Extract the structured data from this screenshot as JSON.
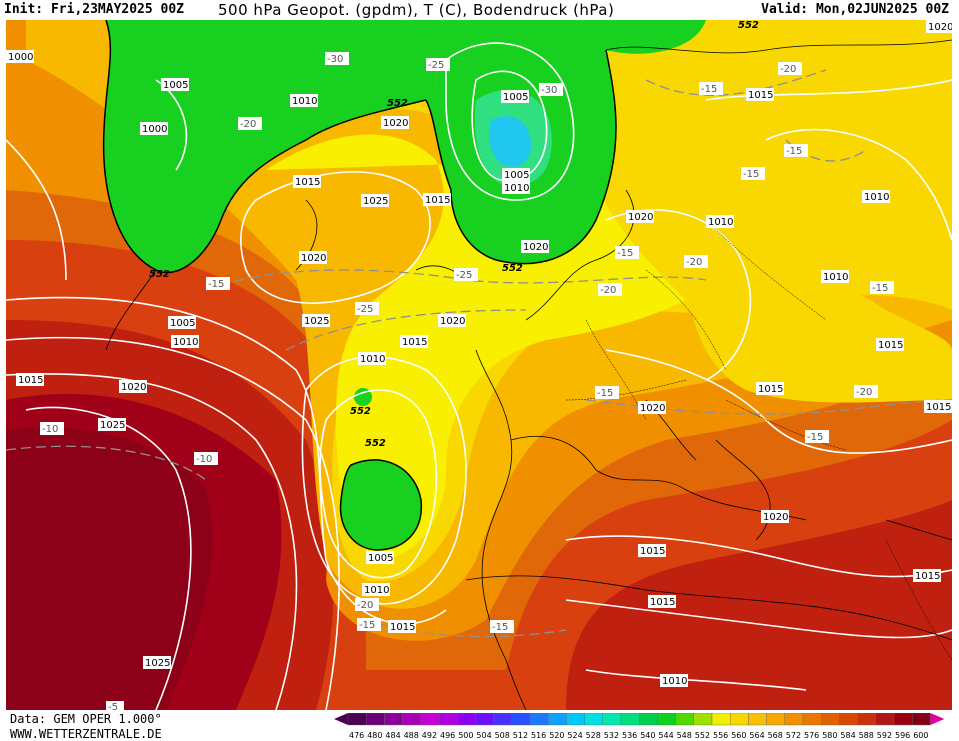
{
  "header": {
    "init": "Init: Fri,23MAY2025 00Z",
    "title": "500 hPa Geopot. (gpdm), T (C), Bodendruck (hPa)",
    "valid": "Valid: Mon,02JUN2025 00Z"
  },
  "footer": {
    "data_source": "Data: GEM OPER 1.000°",
    "website": "WWW.WETTERZENTRALE.DE"
  },
  "legend": {
    "values": [
      "476",
      "480",
      "484",
      "488",
      "492",
      "496",
      "500",
      "504",
      "508",
      "512",
      "516",
      "520",
      "524",
      "528",
      "532",
      "536",
      "540",
      "544",
      "548",
      "552",
      "556",
      "560",
      "564",
      "568",
      "572",
      "576",
      "580",
      "584",
      "588",
      "592",
      "596",
      "600"
    ],
    "colors": [
      "#4b0050",
      "#6a0077",
      "#8a0099",
      "#a800b8",
      "#c400d4",
      "#b000e0",
      "#8c00f0",
      "#6a10ff",
      "#4a30ff",
      "#2a50ff",
      "#1a78ff",
      "#10a0ff",
      "#00c8f8",
      "#00e0e0",
      "#00e8b0",
      "#00e080",
      "#00d050",
      "#10d020",
      "#50d800",
      "#a0e000",
      "#f0f000",
      "#f8d800",
      "#f8c000",
      "#f8a800",
      "#f09000",
      "#e87800",
      "#e06000",
      "#d84800",
      "#c83010",
      "#b01818",
      "#980010",
      "#800018"
    ]
  },
  "isobars": [
    "1000",
    "1005",
    "1010",
    "1010",
    "1000",
    "1015",
    "1020",
    "1025",
    "1015",
    "1020",
    "1005",
    "1010",
    "1005",
    "1010",
    "1020",
    "1010",
    "1015",
    "1025",
    "1020",
    "1015",
    "1010",
    "1020",
    "1025",
    "1020",
    "1015",
    "1010",
    "1005",
    "1010",
    "1015",
    "1015",
    "1020",
    "1010",
    "1015",
    "1020",
    "1015",
    "1015",
    "1020",
    "1015",
    "1010",
    "1025",
    "1010",
    "1015",
    "1010"
  ],
  "temps": [
    "-30",
    "-25",
    "-30",
    "-20",
    "-15",
    "-15",
    "-20",
    "-15",
    "-25",
    "-25",
    "-15",
    "-20",
    "-15",
    "-10",
    "-10",
    "-20",
    "-15",
    "-15",
    "-20",
    "-15",
    "-20",
    "-15",
    "-5",
    "-25",
    "-20",
    "-15"
  ],
  "heights": [
    "552",
    "552",
    "552",
    "552",
    "552",
    "552",
    "552"
  ],
  "colors": {
    "green": "#10d020",
    "yellow": "#f0f000",
    "orange": "#f0a000",
    "red": "#c82010",
    "darkred": "#a00018"
  }
}
